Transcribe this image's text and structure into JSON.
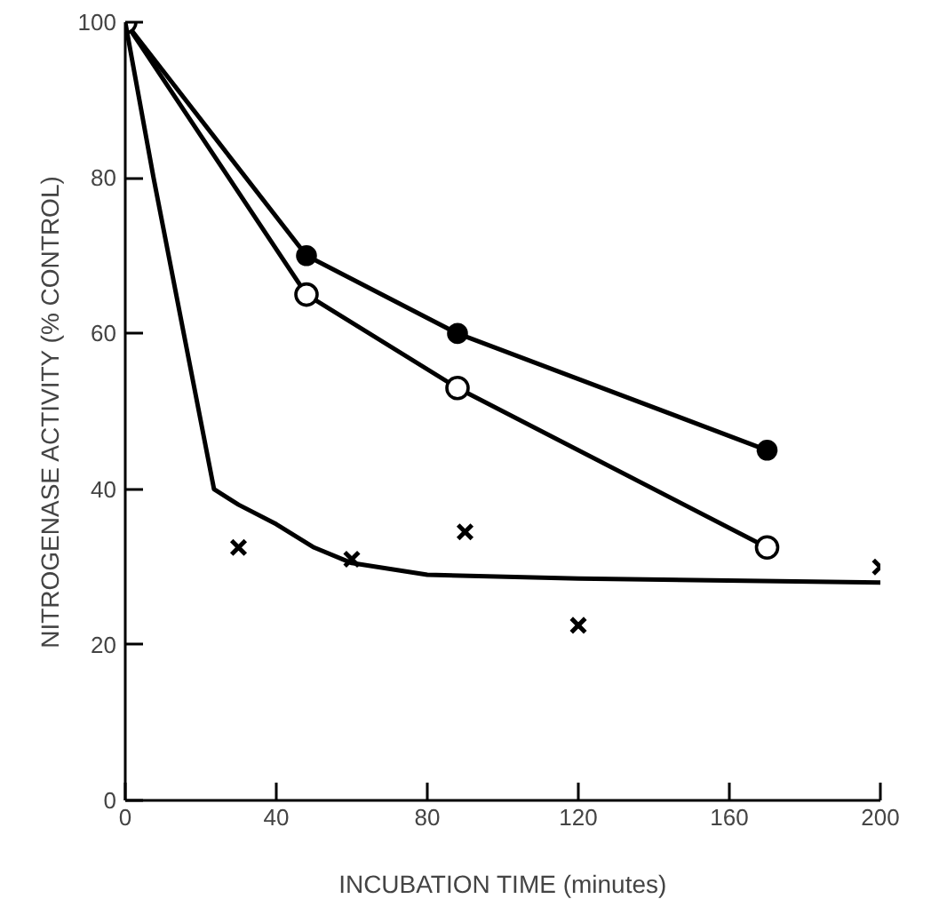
{
  "chart_data": {
    "type": "line",
    "xlabel": "INCUBATION TIME (minutes)",
    "ylabel": "NITROGENASE ACTIVITY (% CONTROL)",
    "xlim": [
      0,
      200
    ],
    "ylim": [
      0,
      100
    ],
    "xticks": [
      0,
      40,
      80,
      120,
      160,
      200
    ],
    "yticks": [
      0,
      20,
      40,
      60,
      80,
      100
    ],
    "grid": false,
    "series": [
      {
        "color": "#000000",
        "marker": "circle",
        "x": [
          0,
          48,
          88,
          170
        ],
        "values": [
          100,
          70,
          60,
          45
        ]
      },
      {
        "color": "#000000",
        "marker": "circle_open",
        "x": [
          0,
          48,
          88,
          170
        ],
        "values": [
          100,
          65,
          53,
          32.5
        ]
      },
      {
        "type": "scatter",
        "color": "#000000",
        "marker": "cross",
        "x": [
          30,
          60,
          90,
          120,
          200
        ],
        "values": [
          32.5,
          31,
          34.5,
          22.5,
          30
        ]
      },
      {
        "color": "#000000",
        "marker": "none",
        "x": [
          0,
          7.5,
          15.5,
          23.5,
          30,
          40,
          50,
          60,
          80,
          120,
          200
        ],
        "values": [
          100,
          80,
          60,
          40,
          38,
          35.5,
          32.5,
          30.5,
          29,
          28.5,
          28
        ]
      }
    ]
  }
}
